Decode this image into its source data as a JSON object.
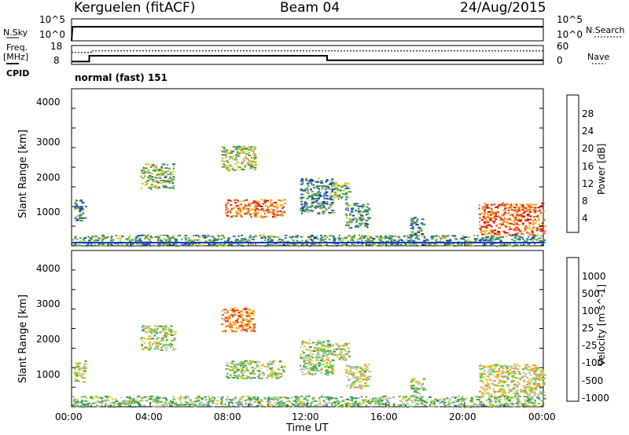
{
  "header": {
    "station": "Kerguelen (fitACF)",
    "beam": "Beam 04",
    "date": "24/Aug/2015"
  },
  "side_labels": {
    "nsky": "N.Sky",
    "freq_line1": "Freq.",
    "freq_line2": "[MHz]",
    "cpid": "CPID",
    "nsearch": "N.Search",
    "nave": "Nave"
  },
  "cpid_text": "normal (fast) 151",
  "time_axis": {
    "ticks": [
      "00:00",
      "04:00",
      "08:00",
      "12:00",
      "16:00",
      "20:00",
      "00:00"
    ],
    "label": "Time UT"
  },
  "chart_data": [
    {
      "type": "line",
      "panel": "noise",
      "left_axis": {
        "name": "N.Sky",
        "ticks": [
          "10^5",
          "10^0"
        ]
      },
      "right_axis": {
        "name": "N.Search",
        "ticks": [
          "10^5",
          "10^0"
        ]
      },
      "series": [
        {
          "name": "N.Sky",
          "x": [
            0.0,
            0.05,
            24.0
          ],
          "y": [
            0,
            3.2,
            3.2
          ]
        },
        {
          "name": "N.Search",
          "x": [
            0.0,
            24.0
          ],
          "y": [
            0,
            0
          ]
        }
      ],
      "xlim": [
        0,
        24
      ]
    },
    {
      "type": "line",
      "panel": "freq_nave",
      "left_axis": {
        "name": "Freq. [MHz]",
        "ticks": [
          "18",
          "8"
        ],
        "ylim": [
          8,
          18
        ]
      },
      "right_axis": {
        "name": "Nave",
        "ticks": [
          "60",
          "0"
        ],
        "ylim": [
          0,
          60
        ]
      },
      "series": [
        {
          "name": "Freq. [MHz]",
          "x": [
            0.0,
            0.9,
            0.9,
            13.0,
            13.0,
            24.0
          ],
          "y": [
            9.5,
            9.5,
            12.6,
            12.6,
            10.2,
            10.2
          ]
        },
        {
          "name": "Nave",
          "x": [
            0.0,
            1.0,
            1.0,
            24.0
          ],
          "y": [
            38,
            38,
            43,
            43
          ]
        }
      ],
      "xlim": [
        0,
        24
      ]
    },
    {
      "type": "heatmap",
      "panel": "power",
      "ylabel": "Slant Range [km]",
      "yticks": [
        "4000",
        "3000",
        "2000",
        "1000"
      ],
      "ylim": [
        180,
        4600
      ],
      "xlim": [
        0,
        24
      ],
      "colorbar": {
        "label": "Power [dB]",
        "ticks": [
          "28",
          "24",
          "20",
          "16",
          "12",
          "8",
          "4"
        ],
        "colors": [
          "#0a1fe6",
          "#1b3fb3",
          "#2d6fa0",
          "#3d8f7a",
          "#55aa3a",
          "#a8c838",
          "#f2c81f",
          "#f59a1f",
          "#f06a20",
          "#e8321e",
          "#d8101a"
        ]
      },
      "regions": [
        {
          "t0": 0.1,
          "t1": 0.7,
          "r0": 900,
          "r1": 1500,
          "level": 0.3
        },
        {
          "t0": 3.5,
          "t1": 5.2,
          "r0": 1800,
          "r1": 2500,
          "level": 0.45
        },
        {
          "t0": 7.6,
          "t1": 9.3,
          "r0": 2300,
          "r1": 3000,
          "level": 0.5
        },
        {
          "t0": 7.8,
          "t1": 10.8,
          "r0": 1000,
          "r1": 1500,
          "level": 0.75
        },
        {
          "t0": 11.6,
          "t1": 13.3,
          "r0": 1100,
          "r1": 2100,
          "level": 0.3
        },
        {
          "t0": 13.3,
          "t1": 14.1,
          "r0": 1500,
          "r1": 2000,
          "level": 0.4
        },
        {
          "t0": 13.9,
          "t1": 15.1,
          "r0": 700,
          "r1": 1400,
          "level": 0.3
        },
        {
          "t0": 17.2,
          "t1": 17.9,
          "r0": 450,
          "r1": 1000,
          "level": 0.35
        },
        {
          "t0": 20.7,
          "t1": 24.0,
          "r0": 500,
          "r1": 1400,
          "level": 0.8
        },
        {
          "t0": 0.0,
          "t1": 24.0,
          "r0": 190,
          "r1": 500,
          "level": 0.35
        }
      ]
    },
    {
      "type": "heatmap",
      "panel": "velocity",
      "ylabel": "Slant Range [km]",
      "yticks": [
        "4000",
        "3000",
        "2000",
        "1000"
      ],
      "ylim": [
        180,
        4600
      ],
      "xlim": [
        0,
        24
      ],
      "colorbar": {
        "label": "Velocity [m s^-1]",
        "ticks": [
          "1000",
          "500",
          "100",
          "25",
          "-25",
          "-100",
          "-500",
          "-1000"
        ],
        "colors": [
          "#1f3fd0",
          "#2a7ab5",
          "#3f9c4a",
          "#69c84a",
          "#bdbdbd",
          "#f2c81f",
          "#f59a1f",
          "#f06a20",
          "#e8321e"
        ]
      },
      "regions": [
        {
          "t0": 0.1,
          "t1": 0.7,
          "r0": 900,
          "r1": 1500,
          "level": 0.5
        },
        {
          "t0": 3.5,
          "t1": 5.2,
          "r0": 1800,
          "r1": 2500,
          "level": 0.5
        },
        {
          "t0": 7.6,
          "t1": 9.3,
          "r0": 2300,
          "r1": 3000,
          "level": 0.8
        },
        {
          "t0": 7.8,
          "t1": 10.8,
          "r0": 1000,
          "r1": 1500,
          "level": 0.45
        },
        {
          "t0": 11.6,
          "t1": 13.3,
          "r0": 1100,
          "r1": 2100,
          "level": 0.45
        },
        {
          "t0": 13.3,
          "t1": 14.1,
          "r0": 1500,
          "r1": 2000,
          "level": 0.5
        },
        {
          "t0": 13.9,
          "t1": 15.1,
          "r0": 700,
          "r1": 1400,
          "level": 0.55
        },
        {
          "t0": 17.2,
          "t1": 17.9,
          "r0": 450,
          "r1": 1000,
          "level": 0.45
        },
        {
          "t0": 20.7,
          "t1": 24.0,
          "r0": 500,
          "r1": 1400,
          "level": 0.55
        },
        {
          "t0": 0.0,
          "t1": 24.0,
          "r0": 190,
          "r1": 500,
          "level": 0.4
        }
      ]
    }
  ]
}
